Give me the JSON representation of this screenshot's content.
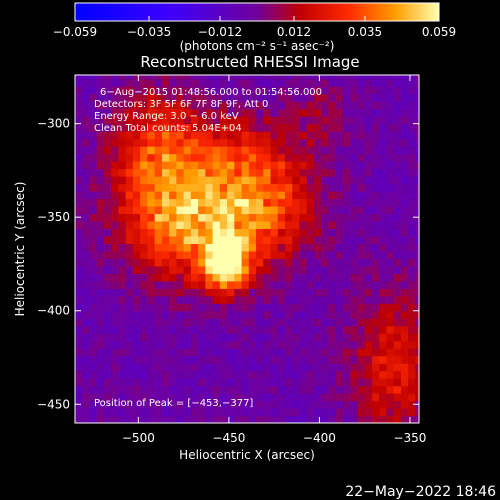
{
  "chart_data": {
    "type": "heatmap",
    "title": "Reconstructed RHESSI Image",
    "xlabel": "Heliocentric X (arcsec)",
    "ylabel": "Heliocentric Y (arcsec)",
    "xlim": [
      -535,
      -345
    ],
    "ylim": [
      -460,
      -274
    ],
    "xticks": [
      -500,
      -450,
      -400,
      -350
    ],
    "yticks": [
      -300,
      -350,
      -400,
      -450
    ],
    "colorbar": {
      "min": -0.059,
      "max": 0.059,
      "ticks": [
        -0.059,
        -0.035,
        -0.012,
        0.012,
        0.035,
        0.059
      ],
      "tick_labels": [
        "−0.059",
        "−0.035",
        "−0.012",
        "0.012",
        "0.035",
        "0.059"
      ],
      "unit_label": "(photons cm⁻² s⁻¹ asec⁻²)"
    },
    "peak": {
      "x": -453,
      "y": -377
    },
    "annotations": [
      "6−Aug−2015 01:48:56.000 to 01:54:56.000",
      "Detectors: 3F 5F 6F 7F 8F 9F, Att 0",
      "Energy Range: 3.0 − 6.0 keV",
      "Clean     Total counts: 5.04E+04"
    ],
    "peak_label": "Position of Peak = [−453,−377]",
    "sources": [
      {
        "x": -452,
        "y": -376,
        "amp": 0.059,
        "sx": 9,
        "sy": 9
      },
      {
        "x": -470,
        "y": -355,
        "amp": 0.04,
        "sx": 26,
        "sy": 20
      },
      {
        "x": -488,
        "y": -318,
        "amp": 0.034,
        "sx": 18,
        "sy": 24
      },
      {
        "x": -432,
        "y": -345,
        "amp": 0.03,
        "sx": 22,
        "sy": 18
      },
      {
        "x": -445,
        "y": -318,
        "amp": 0.022,
        "sx": 24,
        "sy": 16
      },
      {
        "x": -360,
        "y": -430,
        "amp": 0.026,
        "sx": 16,
        "sy": 28
      },
      {
        "x": -400,
        "y": -295,
        "amp": 0.01,
        "sx": 14,
        "sy": 12
      }
    ]
  },
  "timestamp": "22−May−2022 18:46",
  "colors": {
    "background": "#000000",
    "text": "#ffffff"
  }
}
